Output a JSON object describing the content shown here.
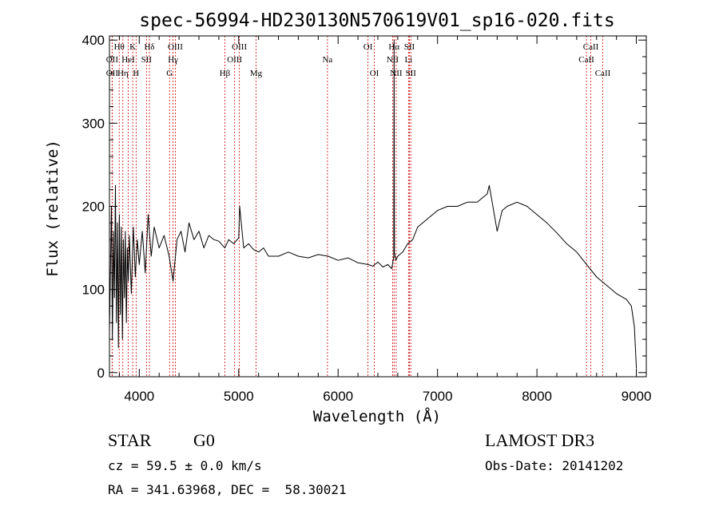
{
  "chart_data": {
    "type": "line",
    "title": "spec-56994-HD230130N570619V01_sp16-020.fits",
    "xlabel": "Wavelength (Å)",
    "ylabel": "Flux (relative)",
    "xlim": [
      3700,
      9100
    ],
    "ylim": [
      -5,
      405
    ],
    "xticks": [
      4000,
      5000,
      6000,
      7000,
      8000,
      9000
    ],
    "yticks": [
      0,
      100,
      200,
      300,
      400
    ],
    "xtick_labels": [
      "4000",
      "5000",
      "6000",
      "7000",
      "8000",
      "9000"
    ],
    "ytick_labels": [
      "0",
      "100",
      "200",
      "300",
      "400"
    ],
    "grid": false,
    "series": [
      {
        "name": "flux",
        "x": [
          3700,
          3710,
          3720,
          3730,
          3740,
          3750,
          3760,
          3770,
          3780,
          3790,
          3800,
          3810,
          3820,
          3830,
          3840,
          3850,
          3860,
          3870,
          3880,
          3890,
          3900,
          3920,
          3940,
          3960,
          3980,
          4000,
          4030,
          4060,
          4090,
          4120,
          4150,
          4200,
          4250,
          4300,
          4340,
          4380,
          4420,
          4460,
          4500,
          4550,
          4600,
          4650,
          4700,
          4750,
          4800,
          4860,
          4900,
          4950,
          5000,
          5010,
          5050,
          5100,
          5150,
          5200,
          5250,
          5300,
          5400,
          5500,
          5600,
          5700,
          5800,
          5900,
          6000,
          6100,
          6200,
          6300,
          6350,
          6400,
          6450,
          6500,
          6540,
          6560,
          6563,
          6566,
          6580,
          6600,
          6650,
          6700,
          6750,
          6800,
          6900,
          7000,
          7100,
          7200,
          7300,
          7400,
          7500,
          7520,
          7550,
          7600,
          7650,
          7700,
          7800,
          7900,
          8000,
          8100,
          8200,
          8300,
          8400,
          8500,
          8600,
          8700,
          8800,
          8900,
          8950,
          8980,
          9000
        ],
        "y": [
          50,
          120,
          200,
          40,
          170,
          90,
          225,
          60,
          180,
          30,
          190,
          70,
          175,
          40,
          160,
          90,
          170,
          60,
          150,
          110,
          165,
          95,
          175,
          115,
          160,
          130,
          170,
          120,
          190,
          140,
          175,
          150,
          165,
          140,
          110,
          160,
          170,
          145,
          180,
          160,
          170,
          150,
          165,
          160,
          158,
          150,
          160,
          155,
          162,
          200,
          150,
          155,
          148,
          145,
          150,
          140,
          140,
          145,
          140,
          138,
          142,
          140,
          135,
          138,
          132,
          130,
          128,
          133,
          127,
          130,
          125,
          140,
          400,
          145,
          135,
          140,
          145,
          155,
          160,
          175,
          185,
          195,
          200,
          200,
          205,
          205,
          215,
          225,
          205,
          170,
          195,
          200,
          205,
          200,
          190,
          180,
          168,
          155,
          145,
          130,
          115,
          105,
          95,
          88,
          80,
          55,
          5
        ]
      }
    ],
    "line_markers": [
      {
        "label": "Hθ",
        "x": 3798,
        "row": 1
      },
      {
        "label": "OII",
        "x": 3727,
        "row": 2
      },
      {
        "label": "OII",
        "x": 3727,
        "row": 3
      },
      {
        "label": "Hη",
        "x": 3835,
        "row": 3
      },
      {
        "label": "HeI",
        "x": 3889,
        "row": 2
      },
      {
        "label": "K",
        "x": 3934,
        "row": 1
      },
      {
        "label": "H",
        "x": 3968,
        "row": 3
      },
      {
        "label": "Hδ",
        "x": 4102,
        "row": 1
      },
      {
        "label": "SII",
        "x": 4072,
        "row": 2
      },
      {
        "label": "OIII",
        "x": 4363,
        "row": 1
      },
      {
        "label": "Hγ",
        "x": 4340,
        "row": 2
      },
      {
        "label": "G",
        "x": 4305,
        "row": 3
      },
      {
        "label": "Hβ",
        "x": 4861,
        "row": 3
      },
      {
        "label": "OIII",
        "x": 5007,
        "row": 1
      },
      {
        "label": "OIII",
        "x": 4959,
        "row": 2
      },
      {
        "label": "Mg",
        "x": 5175,
        "row": 3
      },
      {
        "label": "Na",
        "x": 5893,
        "row": 2
      },
      {
        "label": "OI",
        "x": 6300,
        "row": 1
      },
      {
        "label": "OI",
        "x": 6364,
        "row": 3
      },
      {
        "label": "Hα",
        "x": 6563,
        "row": 1
      },
      {
        "label": "NII",
        "x": 6548,
        "row": 2
      },
      {
        "label": "NII",
        "x": 6584,
        "row": 3
      },
      {
        "label": "SII",
        "x": 6717,
        "row": 1
      },
      {
        "label": "Li",
        "x": 6708,
        "row": 2
      },
      {
        "label": "SII",
        "x": 6731,
        "row": 3
      },
      {
        "label": "CaII",
        "x": 8542,
        "row": 1
      },
      {
        "label": "CaII",
        "x": 8498,
        "row": 2
      },
      {
        "label": "CaII",
        "x": 8662,
        "row": 3
      }
    ]
  },
  "info": {
    "class": "STAR",
    "subclass": "G0",
    "survey": "LAMOST DR3",
    "cz": "cz = 59.5 ± 0.0 km/s",
    "obs_date": "Obs-Date: 20141202",
    "coords": "RA = 341.63968, DEC =  58.30021"
  },
  "colors": {
    "axis": "#000000",
    "spectrum": "#000000",
    "marker_line": "#cc0000",
    "background": "#ffffff"
  }
}
